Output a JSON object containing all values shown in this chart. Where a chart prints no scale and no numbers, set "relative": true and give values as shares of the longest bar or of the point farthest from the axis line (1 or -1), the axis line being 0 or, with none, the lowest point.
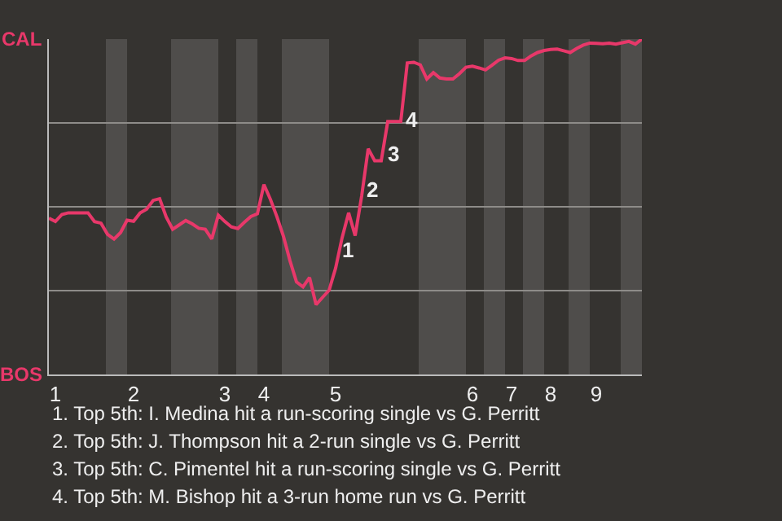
{
  "chart_data": {
    "type": "line",
    "relative": true,
    "categories": [
      null,
      "1",
      null,
      null,
      null,
      null,
      null,
      null,
      null,
      null,
      null,
      null,
      null,
      "2",
      null,
      null,
      null,
      null,
      null,
      null,
      null,
      null,
      null,
      null,
      null,
      null,
      null,
      "3",
      null,
      null,
      null,
      null,
      null,
      "4",
      null,
      null,
      null,
      null,
      null,
      null,
      null,
      null,
      null,
      null,
      "5",
      null,
      null,
      null,
      null,
      null,
      null,
      null,
      null,
      null,
      null,
      null,
      null,
      null,
      null,
      null,
      null,
      null,
      null,
      null,
      null,
      "6",
      null,
      null,
      null,
      null,
      null,
      "7",
      null,
      null,
      null,
      null,
      null,
      "8",
      null,
      null,
      null,
      null,
      null,
      null,
      "9",
      null,
      null,
      null,
      null,
      null,
      null,
      null
    ],
    "series": [
      {
        "color": "#e8386a",
        "values": [
          0.466,
          0.456,
          0.477,
          0.482,
          0.482,
          0.482,
          0.482,
          0.456,
          0.451,
          0.418,
          0.404,
          0.423,
          0.46,
          0.457,
          0.482,
          0.493,
          0.519,
          0.524,
          0.47,
          0.433,
          0.446,
          0.459,
          0.449,
          0.436,
          0.433,
          0.404,
          0.475,
          0.456,
          0.44,
          0.435,
          0.454,
          0.471,
          0.479,
          0.566,
          0.522,
          0.47,
          0.412,
          0.339,
          0.276,
          0.261,
          0.289,
          0.208,
          0.23,
          0.251,
          0.317,
          0.408,
          0.482,
          0.414,
          0.532,
          0.673,
          0.637,
          0.637,
          0.754,
          0.754,
          0.754,
          0.929,
          0.931,
          0.923,
          0.881,
          0.9,
          0.884,
          0.881,
          0.881,
          0.897,
          0.916,
          0.919,
          0.914,
          0.908,
          0.922,
          0.937,
          0.944,
          0.942,
          0.936,
          0.936,
          0.95,
          0.96,
          0.966,
          0.969,
          0.97,
          0.965,
          0.96,
          0.972,
          0.982,
          0.988,
          0.987,
          0.986,
          0.988,
          0.985,
          0.989,
          0.993,
          0.985,
          1.0
        ]
      }
    ],
    "grid": "y",
    "marker": "none",
    "line_style": "solid",
    "annotations": [
      "CAL",
      "BOS",
      "1",
      "2",
      "3",
      "4",
      "1. Top 5th: I. Medina hit a run-scoring single vs G. Perritt",
      "2. Top 5th: J. Thompson hit a 2-run single vs G. Perritt",
      "3. Top 5th: C. Pimentel hit a run-scoring single vs G. Perritt",
      "4. Top 5th: M. Bishop hit a 3-run home run vs G. Perritt"
    ]
  }
}
